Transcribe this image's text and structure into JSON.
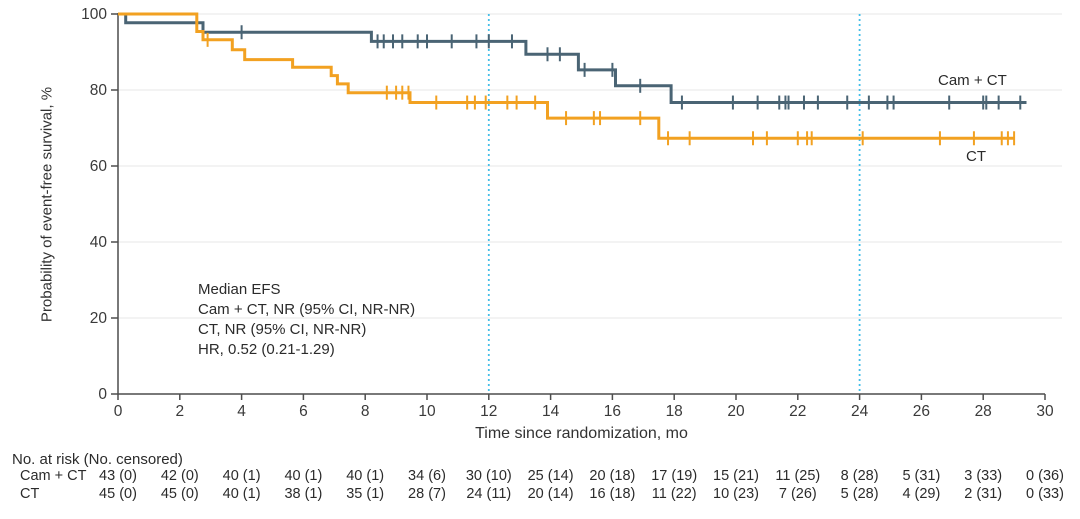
{
  "chart_data": {
    "type": "line",
    "subtype": "kaplan-meier-step",
    "title": "",
    "xlabel": "Time since randomization, mo",
    "ylabel": "Probability of event-free survival, %",
    "xlim": [
      0,
      30
    ],
    "ylim": [
      0,
      100
    ],
    "x_ticks": [
      0,
      2,
      4,
      6,
      8,
      10,
      12,
      14,
      16,
      18,
      20,
      22,
      24,
      26,
      28,
      30
    ],
    "y_ticks": [
      0,
      20,
      40,
      60,
      80,
      100
    ],
    "grid": "horizontal-light",
    "legend_position": "curve-end-labels",
    "reference_lines_x": [
      12,
      24
    ],
    "series": [
      {
        "name": "Cam + CT",
        "color": "#4A6474",
        "steps": [
          [
            0,
            100
          ],
          [
            0.25,
            97.7
          ],
          [
            2.75,
            95.2
          ],
          [
            8.2,
            92.8
          ],
          [
            13.2,
            89.4
          ],
          [
            14.9,
            85.3
          ],
          [
            16.1,
            81.1
          ],
          [
            17.9,
            76.7
          ],
          [
            29.4,
            76.7
          ]
        ],
        "censor_marks": [
          4.0,
          8.4,
          8.6,
          8.9,
          9.2,
          9.7,
          10.0,
          10.8,
          11.6,
          12.0,
          12.75,
          13.9,
          14.3,
          15.1,
          16.0,
          16.9,
          18.25,
          19.9,
          20.7,
          21.4,
          21.6,
          21.7,
          22.2,
          22.65,
          23.6,
          24.3,
          24.9,
          25.1,
          26.9,
          28.0,
          28.1,
          28.5,
          29.2
        ]
      },
      {
        "name": "CT",
        "color": "#F2A121",
        "steps": [
          [
            0,
            100
          ],
          [
            2.55,
            95.4
          ],
          [
            2.75,
            93.2
          ],
          [
            3.7,
            90.6
          ],
          [
            4.1,
            88.0
          ],
          [
            5.65,
            86.0
          ],
          [
            6.9,
            83.8
          ],
          [
            7.1,
            81.6
          ],
          [
            7.45,
            79.3
          ],
          [
            9.45,
            76.7
          ],
          [
            13.9,
            72.6
          ],
          [
            17.5,
            67.3
          ],
          [
            29.0,
            67.3
          ]
        ],
        "censor_marks": [
          2.9,
          8.7,
          9.0,
          9.2,
          9.4,
          10.3,
          11.3,
          11.55,
          11.9,
          12.6,
          12.9,
          13.5,
          14.5,
          15.4,
          15.6,
          16.9,
          17.8,
          18.5,
          20.55,
          21.0,
          22.0,
          22.3,
          22.45,
          24.1,
          26.6,
          27.7,
          28.6,
          28.8,
          29.0
        ]
      }
    ]
  },
  "annotation": {
    "lines": [
      "Median EFS",
      "Cam + CT, NR (95% CI, NR-NR)",
      "CT, NR (95% CI, NR-NR)",
      "HR, 0.52 (0.21-1.29)"
    ]
  },
  "risk_table": {
    "header": "No. at risk (No. censored)",
    "time_points": [
      0,
      2,
      4,
      6,
      8,
      10,
      12,
      14,
      16,
      18,
      20,
      22,
      24,
      26,
      28,
      30
    ],
    "rows": [
      {
        "label": "Cam + CT",
        "values": [
          "43 (0)",
          "42 (0)",
          "40 (1)",
          "40 (1)",
          "40 (1)",
          "34 (6)",
          "30 (10)",
          "25 (14)",
          "20 (18)",
          "17 (19)",
          "15 (21)",
          "11 (25)",
          "8 (28)",
          "5 (31)",
          "3 (33)",
          "0 (36)"
        ]
      },
      {
        "label": "CT",
        "values": [
          "45 (0)",
          "45 (0)",
          "40 (1)",
          "38 (1)",
          "35 (1)",
          "28 (7)",
          "24 (11)",
          "20 (14)",
          "16 (18)",
          "11 (22)",
          "10 (23)",
          "7 (26)",
          "5 (28)",
          "4 (29)",
          "2 (31)",
          "0 (33)"
        ]
      }
    ]
  },
  "colors": {
    "camct": "#4A6474",
    "ct": "#F2A121",
    "reference_line": "#45BEE8",
    "gridline": "#ECECEC",
    "axis": "#4D4D4D",
    "tick_text": "#3A3A3A"
  }
}
